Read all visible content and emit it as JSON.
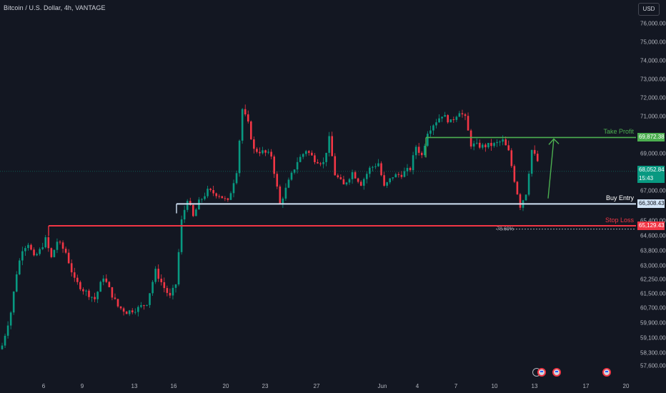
{
  "header": {
    "title": "Bitcoin / U.S. Dollar, 4h, VANTAGE"
  },
  "price_axis": {
    "currency": "USD",
    "ticks": [
      "76,000.00",
      "75,000.00",
      "74,000.00",
      "73,000.00",
      "72,000.00",
      "71,000.00",
      "69,000.00",
      "67,000.00",
      "65,400.00",
      "64,600.00",
      "63,800.00",
      "63,000.00",
      "62,250.00",
      "61,500.00",
      "60,700.00",
      "59,900.00",
      "59,100.00",
      "58,300.00",
      "57,600.00"
    ]
  },
  "time_axis": {
    "labels": [
      "6",
      "9",
      "13",
      "16",
      "20",
      "23",
      "27",
      "Jun",
      "4",
      "7",
      "10",
      "13",
      "17",
      "20"
    ]
  },
  "levels": {
    "take_profit": {
      "label": "Take Profit",
      "price_text": "69,872.38",
      "price": 69872.38,
      "color": "#4caf50"
    },
    "buy_entry": {
      "label": "Buy Entry",
      "price_text": "66,308.43",
      "price": 66308.43,
      "color": "#d1e3f6"
    },
    "stop_loss": {
      "label": "Stop Loss",
      "price_text": "65,129.43",
      "price": 65129.43,
      "color": "#f23645"
    },
    "fib": {
      "label": "78.60%"
    }
  },
  "current_price": {
    "price_text": "68,052.84",
    "countdown": "15:43",
    "color": "#089981"
  },
  "colors": {
    "background": "#131722",
    "up": "#089981",
    "down": "#f23645",
    "arrow": "#4caf50"
  },
  "event_icons": [
    "flash-icon",
    "us-flag-icon",
    "us-flag-icon",
    "us-flag-icon"
  ],
  "chart_data": {
    "type": "candlestick",
    "title": "Bitcoin / U.S. Dollar, 4h, VANTAGE",
    "interval": "4h",
    "ylim": [
      57300,
      76800
    ],
    "x_labels": [
      "6",
      "9",
      "13",
      "16",
      "20",
      "23",
      "27",
      "Jun",
      "4",
      "7",
      "10",
      "13",
      "17",
      "20"
    ],
    "close_anchors": [
      [
        0,
        58700
      ],
      [
        3,
        60500
      ],
      [
        5,
        62600
      ],
      [
        7,
        63900
      ],
      [
        9,
        64200
      ],
      [
        11,
        63400
      ],
      [
        13,
        63800
      ],
      [
        15,
        64400
      ],
      [
        17,
        63400
      ],
      [
        19,
        64300
      ],
      [
        22,
        63700
      ],
      [
        25,
        62200
      ],
      [
        28,
        61700
      ],
      [
        32,
        61200
      ],
      [
        35,
        62400
      ],
      [
        38,
        61400
      ],
      [
        40,
        60800
      ],
      [
        43,
        60500
      ],
      [
        47,
        60700
      ],
      [
        50,
        61000
      ],
      [
        53,
        62700
      ],
      [
        56,
        61800
      ],
      [
        58,
        61300
      ],
      [
        60,
        62000
      ],
      [
        62,
        65400
      ],
      [
        64,
        66600
      ],
      [
        66,
        65600
      ],
      [
        68,
        66400
      ],
      [
        71,
        67000
      ],
      [
        75,
        66800
      ],
      [
        78,
        66400
      ],
      [
        81,
        68100
      ],
      [
        83,
        71400
      ],
      [
        85,
        70600
      ],
      [
        87,
        69200
      ],
      [
        90,
        69100
      ],
      [
        93,
        68900
      ],
      [
        96,
        66300
      ],
      [
        99,
        67500
      ],
      [
        102,
        68600
      ],
      [
        105,
        69200
      ],
      [
        108,
        68700
      ],
      [
        111,
        68500
      ],
      [
        113,
        69800
      ],
      [
        115,
        67900
      ],
      [
        118,
        67300
      ],
      [
        121,
        68000
      ],
      [
        124,
        67400
      ],
      [
        127,
        68200
      ],
      [
        130,
        68500
      ],
      [
        132,
        67200
      ],
      [
        135,
        67800
      ],
      [
        138,
        67900
      ],
      [
        141,
        68200
      ],
      [
        143,
        69400
      ],
      [
        145,
        68900
      ],
      [
        147,
        70200
      ],
      [
        149,
        70600
      ],
      [
        152,
        71100
      ],
      [
        155,
        70700
      ],
      [
        158,
        71300
      ],
      [
        160,
        70900
      ],
      [
        162,
        69500
      ],
      [
        166,
        69400
      ],
      [
        170,
        69500
      ],
      [
        173,
        69700
      ],
      [
        175,
        69100
      ],
      [
        177,
        67600
      ],
      [
        179,
        66200
      ],
      [
        181,
        66900
      ],
      [
        183,
        69200
      ],
      [
        185,
        68600
      ]
    ]
  }
}
